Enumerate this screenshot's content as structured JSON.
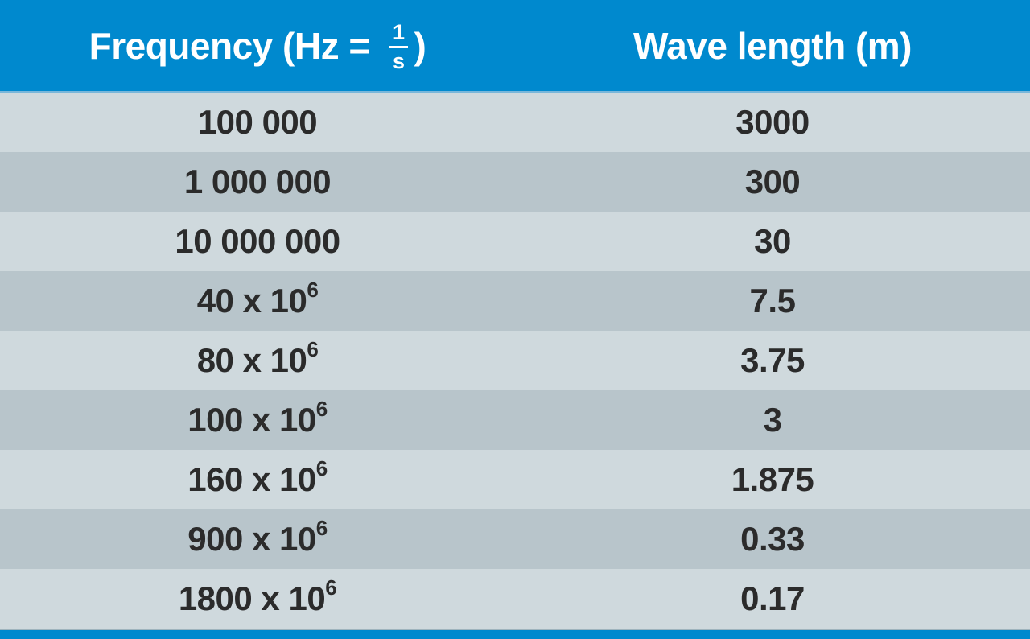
{
  "header": {
    "frequency": {
      "prefix": "Frequency (Hz = ",
      "fraction_numerator": "1",
      "fraction_denominator": "s",
      "suffix": ")"
    },
    "wavelength": "Wave length (m)"
  },
  "rows": [
    {
      "frequency_base": "100 000",
      "frequency_exponent": "",
      "wavelength": "3000"
    },
    {
      "frequency_base": "1 000 000",
      "frequency_exponent": "",
      "wavelength": "300"
    },
    {
      "frequency_base": "10 000 000",
      "frequency_exponent": "",
      "wavelength": "30"
    },
    {
      "frequency_base": "40 x 10",
      "frequency_exponent": "6",
      "wavelength": "7.5"
    },
    {
      "frequency_base": "80 x 10",
      "frequency_exponent": "6",
      "wavelength": "3.75"
    },
    {
      "frequency_base": "100 x 10",
      "frequency_exponent": "6",
      "wavelength": "3"
    },
    {
      "frequency_base": "160 x 10",
      "frequency_exponent": "6",
      "wavelength": "1.875"
    },
    {
      "frequency_base": "900 x 10",
      "frequency_exponent": "6",
      "wavelength": "0.33"
    },
    {
      "frequency_base": "1800 x 10",
      "frequency_exponent": "6",
      "wavelength": "0.17"
    }
  ],
  "colors": {
    "header_blue": "#0089ce",
    "row_light": "#cfd9dd",
    "row_dark": "#b8c5cb",
    "text_dark": "#2b2b2b",
    "header_text": "#ffffff"
  },
  "chart_data": {
    "type": "table",
    "title": "Frequency vs Wave length",
    "columns": [
      "Frequency (Hz = 1/s)",
      "Wave length (m)"
    ],
    "frequencies_hz": [
      100000,
      1000000,
      10000000,
      40000000,
      80000000,
      100000000,
      160000000,
      900000000,
      1800000000
    ],
    "frequencies_display": [
      "100 000",
      "1 000 000",
      "10 000 000",
      "40 x 10^6",
      "80 x 10^6",
      "100 x 10^6",
      "160 x 10^6",
      "900 x 10^6",
      "1800 x 10^6"
    ],
    "wavelengths_m": [
      3000,
      300,
      30,
      7.5,
      3.75,
      3,
      1.875,
      0.33,
      0.17
    ]
  }
}
